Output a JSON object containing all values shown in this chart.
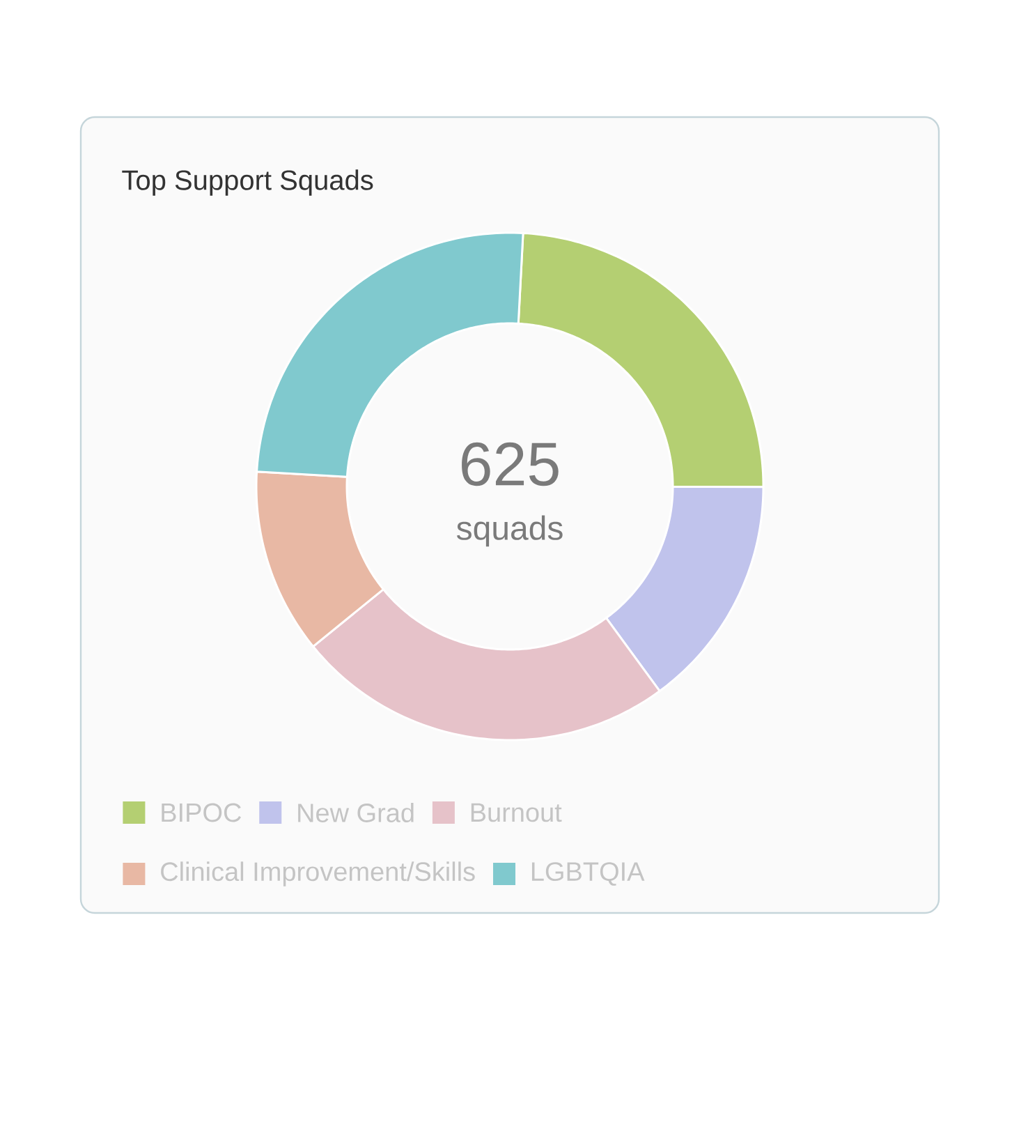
{
  "chart_data": {
    "type": "donut",
    "title": "Top Support Squads",
    "categories": [
      "BIPOC",
      "New Grad",
      "Burnout",
      "Clinical Improvement/Skills",
      "LGBTQIA"
    ],
    "values": [
      24.2,
      14.9,
      24.2,
      11.8,
      24.9
    ],
    "colors": [
      "#b4cf72",
      "#c0c3ec",
      "#e6c2c9",
      "#e8b8a4",
      "#80c9ce"
    ],
    "annotations": [
      "625",
      "squads"
    ],
    "legend": "bottom"
  }
}
